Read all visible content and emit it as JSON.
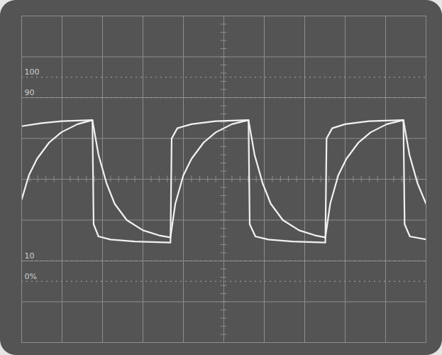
{
  "chart_data": {
    "type": "line",
    "xlim": [
      0,
      10
    ],
    "ylim": [
      -30,
      130
    ],
    "yticks": [
      100,
      90,
      10,
      {
        "value": 0,
        "label": "0%"
      }
    ],
    "grid": true,
    "tick_labels": "y",
    "series": [
      {
        "color": "#f2f2f2",
        "x": [
          0,
          0.5,
          1,
          1.75,
          1.78,
          1.9,
          2.2,
          2.8,
          3.68,
          3.71,
          3.85,
          4.2,
          4.8,
          5.61,
          5.64,
          5.78,
          6.1,
          6.7,
          7.51,
          7.54,
          7.68,
          8.0,
          8.6,
          9.44,
          9.47,
          9.6,
          10
        ],
        "values": [
          76,
          77.5,
          78.5,
          79,
          28,
          22,
          20.5,
          19.5,
          19,
          70,
          75,
          77,
          78.5,
          79,
          28,
          22,
          20.5,
          19.5,
          19,
          70,
          75,
          77,
          78.5,
          79,
          28,
          22,
          20.5
        ]
      },
      {
        "color": "#f2f2f2",
        "x": [
          0,
          0.18,
          0.38,
          0.68,
          0.98,
          1.38,
          1.75,
          1.9,
          2.1,
          2.3,
          2.6,
          3.0,
          3.4,
          3.68,
          3.8,
          4.0,
          4.2,
          4.5,
          4.8,
          5.2,
          5.61,
          5.76,
          5.96,
          6.16,
          6.46,
          6.86,
          7.26,
          7.51,
          7.63,
          7.83,
          8.03,
          8.33,
          8.63,
          9.03,
          9.44,
          9.59,
          9.79,
          10
        ],
        "values": [
          40,
          52,
          60,
          68,
          73,
          77,
          79,
          62,
          48,
          38,
          30,
          25,
          22.5,
          21.5,
          38,
          52,
          60,
          68,
          73,
          77,
          79,
          62,
          48,
          38,
          30,
          25,
          22.5,
          21.5,
          38,
          52,
          60,
          68,
          73,
          77,
          79,
          62,
          48,
          38
        ]
      }
    ]
  }
}
